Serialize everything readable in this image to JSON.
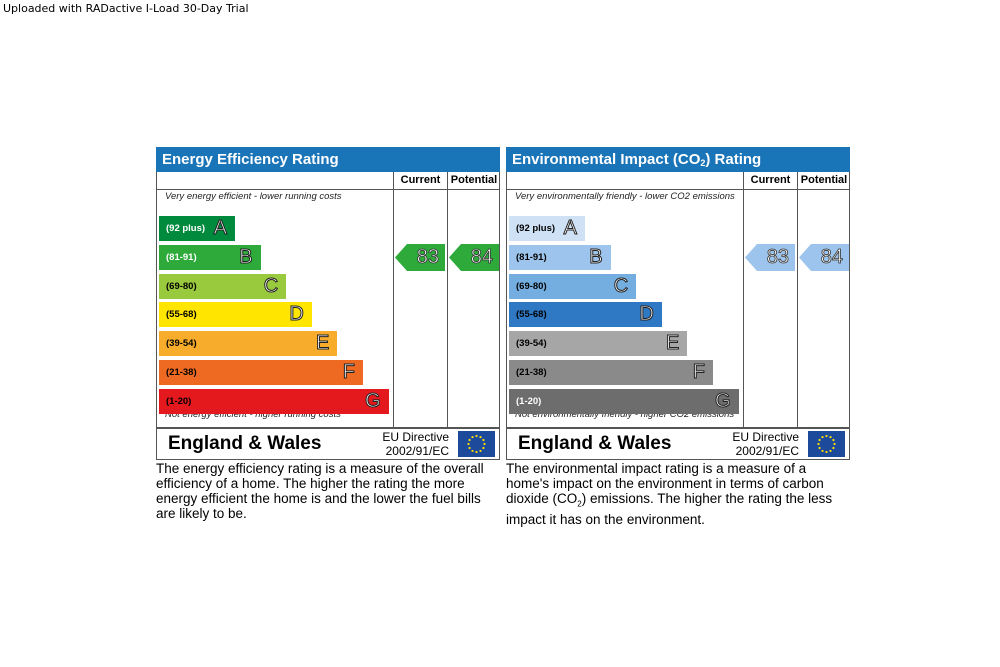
{
  "watermark": "Uploaded with RADactive I-Load 30-Day Trial",
  "column_headers": {
    "current": "Current",
    "potential": "Potential"
  },
  "footer": {
    "region": "England & Wales",
    "directive_line1": "EU Directive",
    "directive_line2": "2002/91/EC"
  },
  "chart_data": [
    {
      "type": "bar",
      "title": "Energy Efficiency Rating",
      "top_caption": "Very energy efficient - lower running costs",
      "bottom_caption": "Not energy efficient - higher running costs",
      "categories": [
        "A",
        "B",
        "C",
        "D",
        "E",
        "F",
        "G"
      ],
      "ranges": [
        "(92 plus)",
        "(81-91)",
        "(69-80)",
        "(55-68)",
        "(39-54)",
        "(21-38)",
        "(1-20)"
      ],
      "colors": [
        "#008a3e",
        "#2daa3a",
        "#99c93d",
        "#ffe500",
        "#f7ac2b",
        "#ee6a22",
        "#e3191e"
      ],
      "range_text_colors": [
        "#ffffff",
        "#ffffff",
        "#000000",
        "#000000",
        "#000000",
        "#000000",
        "#000000"
      ],
      "current": 83,
      "potential": 84,
      "arrow_color": "#2daa3a",
      "description": "The energy efficiency rating is a measure of the overall efficiency of a home. The higher the rating the more energy efficient the home is and the lower the fuel bills are likely to be."
    },
    {
      "type": "bar",
      "title": "Environmental Impact (CO2) Rating",
      "top_caption": "Very environmentally friendly - lower CO2 emissions",
      "bottom_caption": "Not environmentally friendly - higher CO2 emissions",
      "categories": [
        "A",
        "B",
        "C",
        "D",
        "E",
        "F",
        "G"
      ],
      "ranges": [
        "(92 plus)",
        "(81-91)",
        "(69-80)",
        "(55-68)",
        "(39-54)",
        "(21-38)",
        "(1-20)"
      ],
      "colors": [
        "#cfe2f5",
        "#9cc4ec",
        "#74aee0",
        "#2f78c4",
        "#a6a6a6",
        "#8a8a8a",
        "#6d6d6d"
      ],
      "range_text_colors": [
        "#000000",
        "#000000",
        "#000000",
        "#000000",
        "#000000",
        "#000000",
        "#ffffff"
      ],
      "current": 83,
      "potential": 84,
      "arrow_color": "#9cc4ec",
      "description": "The environmental impact rating is a measure of a home's impact on the environment in terms of carbon dioxide (CO2) emissions. The higher the rating the less impact it has on the environment."
    }
  ]
}
